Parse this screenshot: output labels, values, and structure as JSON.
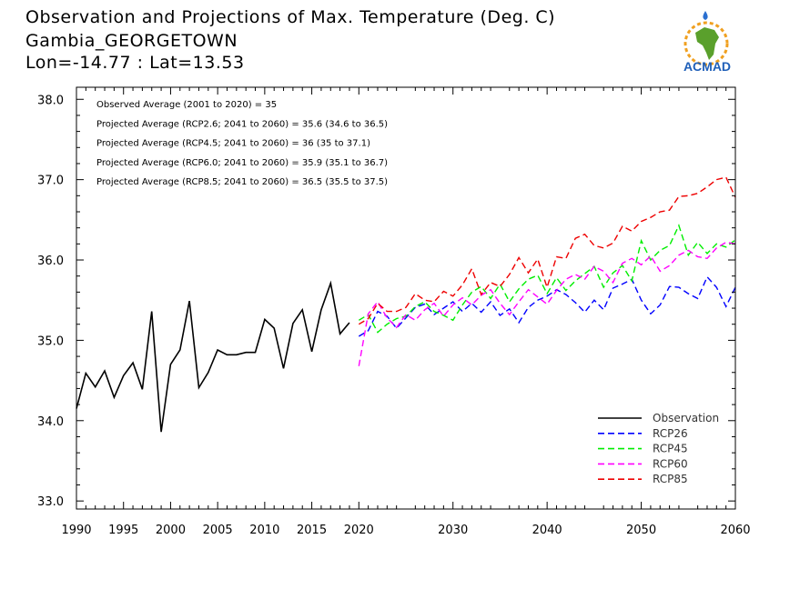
{
  "header": {
    "title_line1": "Observation and Projections of Max. Temperature (Deg. C)",
    "title_line2": "Gambia_GEORGETOWN",
    "title_line3": "Lon=-14.77 : Lat=13.53"
  },
  "logo": {
    "text": "ACMAD",
    "icon": "africa-map-logo"
  },
  "stats": [
    "Observed Average (2001 to 2020) = 35",
    "Projected Average (RCP2.6; 2041 to 2060) = 35.6 (34.6 to 36.5)",
    "Projected Average (RCP4.5; 2041 to 2060) = 36 (35 to 37.1)",
    "Projected Average (RCP6.0; 2041 to 2060) = 35.9 (35.1 to 36.7)",
    "Projected Average (RCP8.5; 2041 to 2060) = 36.5 (35.5 to 37.5)"
  ],
  "chart_data": {
    "type": "line",
    "xlim": [
      1990,
      2060
    ],
    "ylim": [
      32.9,
      38.15
    ],
    "x_ticks": [
      1990,
      1995,
      2000,
      2005,
      2010,
      2015,
      2020,
      2030,
      2040,
      2050,
      2060
    ],
    "y_ticks": [
      "33.0",
      "34.0",
      "35.0",
      "36.0",
      "37.0",
      "38.0"
    ],
    "legend_position": "bottom-right",
    "series": [
      {
        "name": "Observation",
        "color": "#000000",
        "dash": "solid",
        "x": [
          1990,
          1991,
          1992,
          1993,
          1994,
          1995,
          1996,
          1997,
          1998,
          1999,
          2000,
          2001,
          2002,
          2003,
          2004,
          2005,
          2006,
          2007,
          2008,
          2009,
          2010,
          2011,
          2012,
          2013,
          2014,
          2015,
          2016,
          2017,
          2018,
          2019
        ],
        "y": [
          34.15,
          34.59,
          34.42,
          34.62,
          34.29,
          34.56,
          34.72,
          34.39,
          35.36,
          33.86,
          34.7,
          34.88,
          35.49,
          34.41,
          34.6,
          34.88,
          34.82,
          34.82,
          34.85,
          34.85,
          35.26,
          35.15,
          34.65,
          35.21,
          35.38,
          34.86,
          35.38,
          35.71,
          35.08,
          35.22
        ]
      },
      {
        "name": "RCP26",
        "color": "#0000ff",
        "dash": "dashed",
        "x": [
          2020,
          2021,
          2022,
          2023,
          2024,
          2025,
          2026,
          2027,
          2028,
          2029,
          2030,
          2031,
          2032,
          2033,
          2034,
          2035,
          2036,
          2037,
          2038,
          2039,
          2040,
          2041,
          2042,
          2043,
          2044,
          2045,
          2046,
          2047,
          2048,
          2049,
          2050,
          2051,
          2052,
          2053,
          2054,
          2055,
          2056,
          2057,
          2058,
          2059,
          2060
        ],
        "y": [
          35.05,
          35.12,
          35.36,
          35.3,
          35.15,
          35.28,
          35.41,
          35.45,
          35.32,
          35.4,
          35.48,
          35.36,
          35.46,
          35.35,
          35.48,
          35.31,
          35.39,
          35.22,
          35.41,
          35.5,
          35.55,
          35.63,
          35.57,
          35.47,
          35.35,
          35.5,
          35.38,
          35.65,
          35.7,
          35.76,
          35.5,
          35.33,
          35.44,
          35.67,
          35.66,
          35.58,
          35.52,
          35.79,
          35.66,
          35.42,
          35.66
        ]
      },
      {
        "name": "RCP45",
        "color": "#00ee00",
        "dash": "dashed",
        "x": [
          2020,
          2021,
          2022,
          2023,
          2024,
          2025,
          2026,
          2027,
          2028,
          2029,
          2030,
          2031,
          2032,
          2033,
          2034,
          2035,
          2036,
          2037,
          2038,
          2039,
          2040,
          2041,
          2042,
          2043,
          2044,
          2045,
          2046,
          2047,
          2048,
          2049,
          2050,
          2051,
          2052,
          2053,
          2054,
          2055,
          2056,
          2057,
          2058,
          2059,
          2060
        ],
        "y": [
          35.25,
          35.32,
          35.1,
          35.2,
          35.27,
          35.3,
          35.42,
          35.48,
          35.36,
          35.31,
          35.25,
          35.44,
          35.6,
          35.67,
          35.52,
          35.7,
          35.48,
          35.64,
          35.76,
          35.81,
          35.58,
          35.78,
          35.62,
          35.74,
          35.83,
          35.92,
          35.66,
          35.84,
          35.93,
          35.74,
          36.24,
          36.0,
          36.12,
          36.18,
          36.43,
          36.06,
          36.22,
          36.08,
          36.2,
          36.16,
          36.25
        ]
      },
      {
        "name": "RCP60",
        "color": "#ff00ff",
        "dash": "dashed",
        "x": [
          2020,
          2021,
          2022,
          2023,
          2024,
          2025,
          2026,
          2027,
          2028,
          2029,
          2030,
          2031,
          2032,
          2033,
          2034,
          2035,
          2036,
          2037,
          2038,
          2039,
          2040,
          2041,
          2042,
          2043,
          2044,
          2045,
          2046,
          2047,
          2048,
          2049,
          2050,
          2051,
          2052,
          2053,
          2054,
          2055,
          2056,
          2057,
          2058,
          2059,
          2060
        ],
        "y": [
          34.68,
          35.33,
          35.48,
          35.28,
          35.16,
          35.32,
          35.25,
          35.38,
          35.46,
          35.3,
          35.44,
          35.53,
          35.44,
          35.56,
          35.63,
          35.46,
          35.32,
          35.48,
          35.63,
          35.54,
          35.45,
          35.62,
          35.76,
          35.82,
          35.76,
          35.92,
          35.86,
          35.72,
          35.96,
          36.02,
          35.94,
          36.05,
          35.86,
          35.93,
          36.06,
          36.12,
          36.04,
          36.02,
          36.15,
          36.22,
          36.2
        ]
      },
      {
        "name": "RCP85",
        "color": "#ee0000",
        "dash": "dashed",
        "x": [
          2020,
          2021,
          2022,
          2023,
          2024,
          2025,
          2026,
          2027,
          2028,
          2029,
          2030,
          2031,
          2032,
          2033,
          2034,
          2035,
          2036,
          2037,
          2038,
          2039,
          2040,
          2041,
          2042,
          2043,
          2044,
          2045,
          2046,
          2047,
          2048,
          2049,
          2050,
          2051,
          2052,
          2053,
          2054,
          2055,
          2056,
          2057,
          2058,
          2059,
          2060
        ],
        "y": [
          35.2,
          35.27,
          35.46,
          35.36,
          35.36,
          35.41,
          35.58,
          35.5,
          35.48,
          35.61,
          35.55,
          35.69,
          35.89,
          35.57,
          35.72,
          35.67,
          35.82,
          36.03,
          35.84,
          36.01,
          35.66,
          36.04,
          36.02,
          36.27,
          36.32,
          36.18,
          36.15,
          36.21,
          36.42,
          36.36,
          36.48,
          36.53,
          36.6,
          36.62,
          36.79,
          36.8,
          36.83,
          36.91,
          37.0,
          37.03,
          36.78
        ]
      }
    ]
  }
}
